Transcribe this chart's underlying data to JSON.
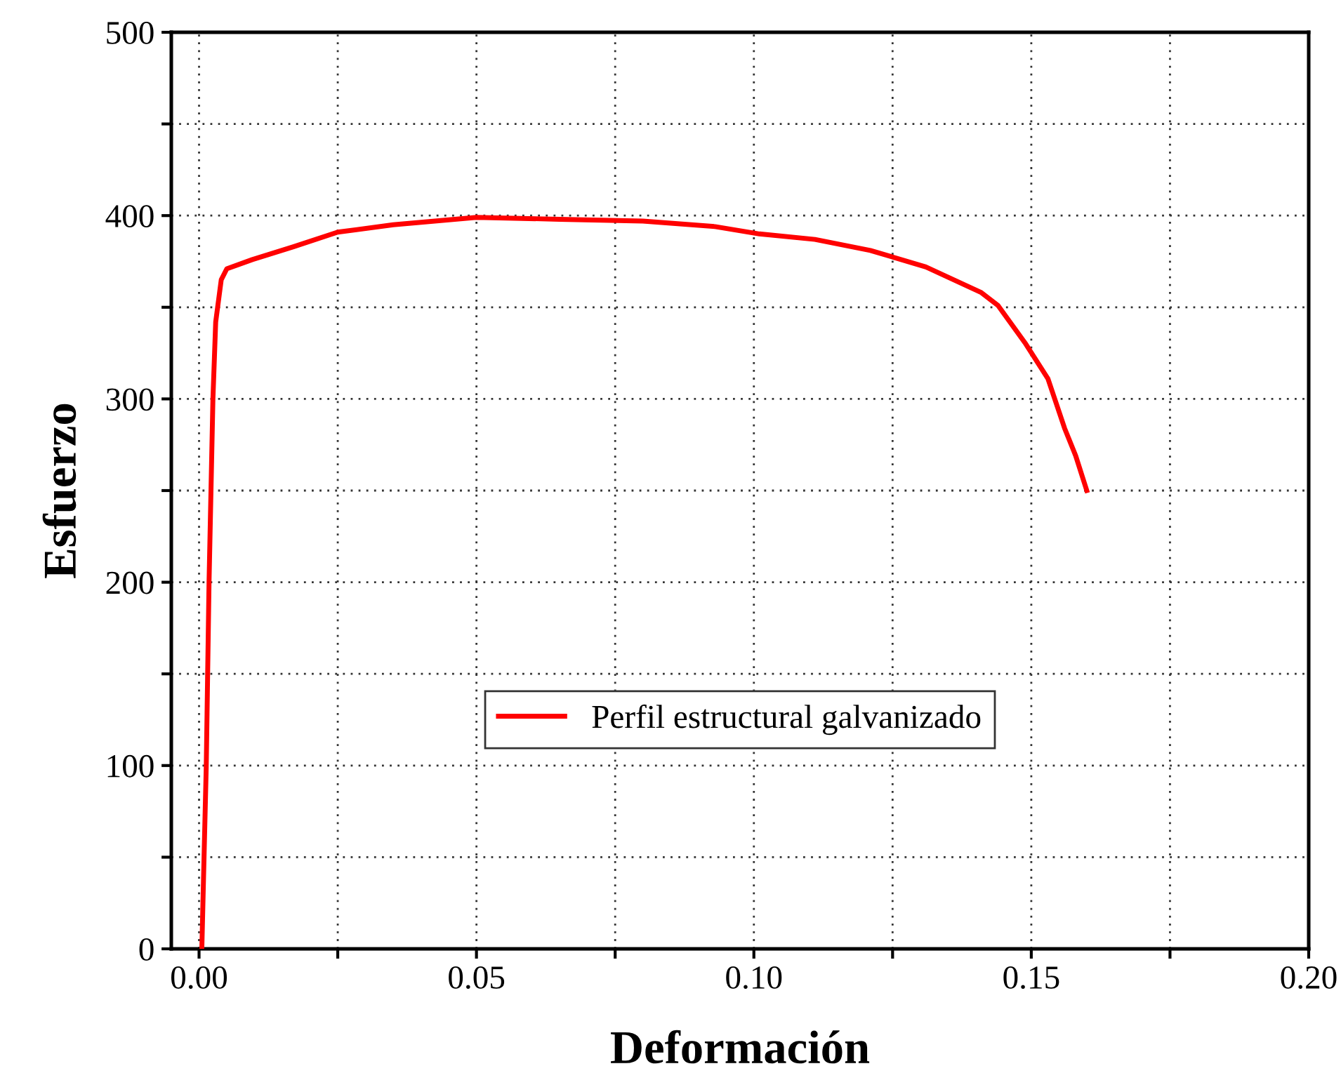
{
  "chart_data": {
    "type": "line",
    "xlabel": "Deformación",
    "ylabel": "Esfuerzo",
    "xlim": [
      -0.005,
      0.2
    ],
    "ylim": [
      0,
      500
    ],
    "xticks": [
      {
        "value": 0,
        "label": "0.00"
      },
      {
        "value": 0.025,
        "label": null
      },
      {
        "value": 0.05,
        "label": "0.05"
      },
      {
        "value": 0.075,
        "label": null
      },
      {
        "value": 0.1,
        "label": "0.10"
      },
      {
        "value": 0.125,
        "label": null
      },
      {
        "value": 0.15,
        "label": "0.15"
      },
      {
        "value": 0.175,
        "label": null
      },
      {
        "value": 0.2,
        "label": "0.20"
      }
    ],
    "yticks": [
      0,
      {
        "value": 50,
        "label": null
      },
      100,
      {
        "value": 150,
        "label": null
      },
      200,
      {
        "value": 250,
        "label": null
      },
      300,
      {
        "value": 350,
        "label": null
      },
      400,
      {
        "value": 450,
        "label": null
      },
      500
    ],
    "grid": true,
    "legend": "center",
    "line_style": "solid",
    "marker": "none",
    "series": [
      {
        "name": "Perfil estructural galvanizado",
        "color": "#ff0000",
        "x": [
          0.0005,
          0.0013,
          0.0018,
          0.0025,
          0.003,
          0.004,
          0.005,
          0.0096,
          0.017,
          0.025,
          0.035,
          0.05,
          0.065,
          0.08,
          0.093,
          0.101,
          0.111,
          0.121,
          0.131,
          0.141,
          0.144,
          0.149,
          0.153,
          0.156,
          0.158,
          0.16
        ],
        "values": [
          0,
          100,
          200,
          300,
          342,
          365,
          371,
          376,
          383,
          391,
          395,
          399,
          398,
          397,
          394,
          390,
          387,
          381,
          372,
          358,
          351,
          330,
          311,
          284,
          269,
          250
        ]
      }
    ]
  }
}
